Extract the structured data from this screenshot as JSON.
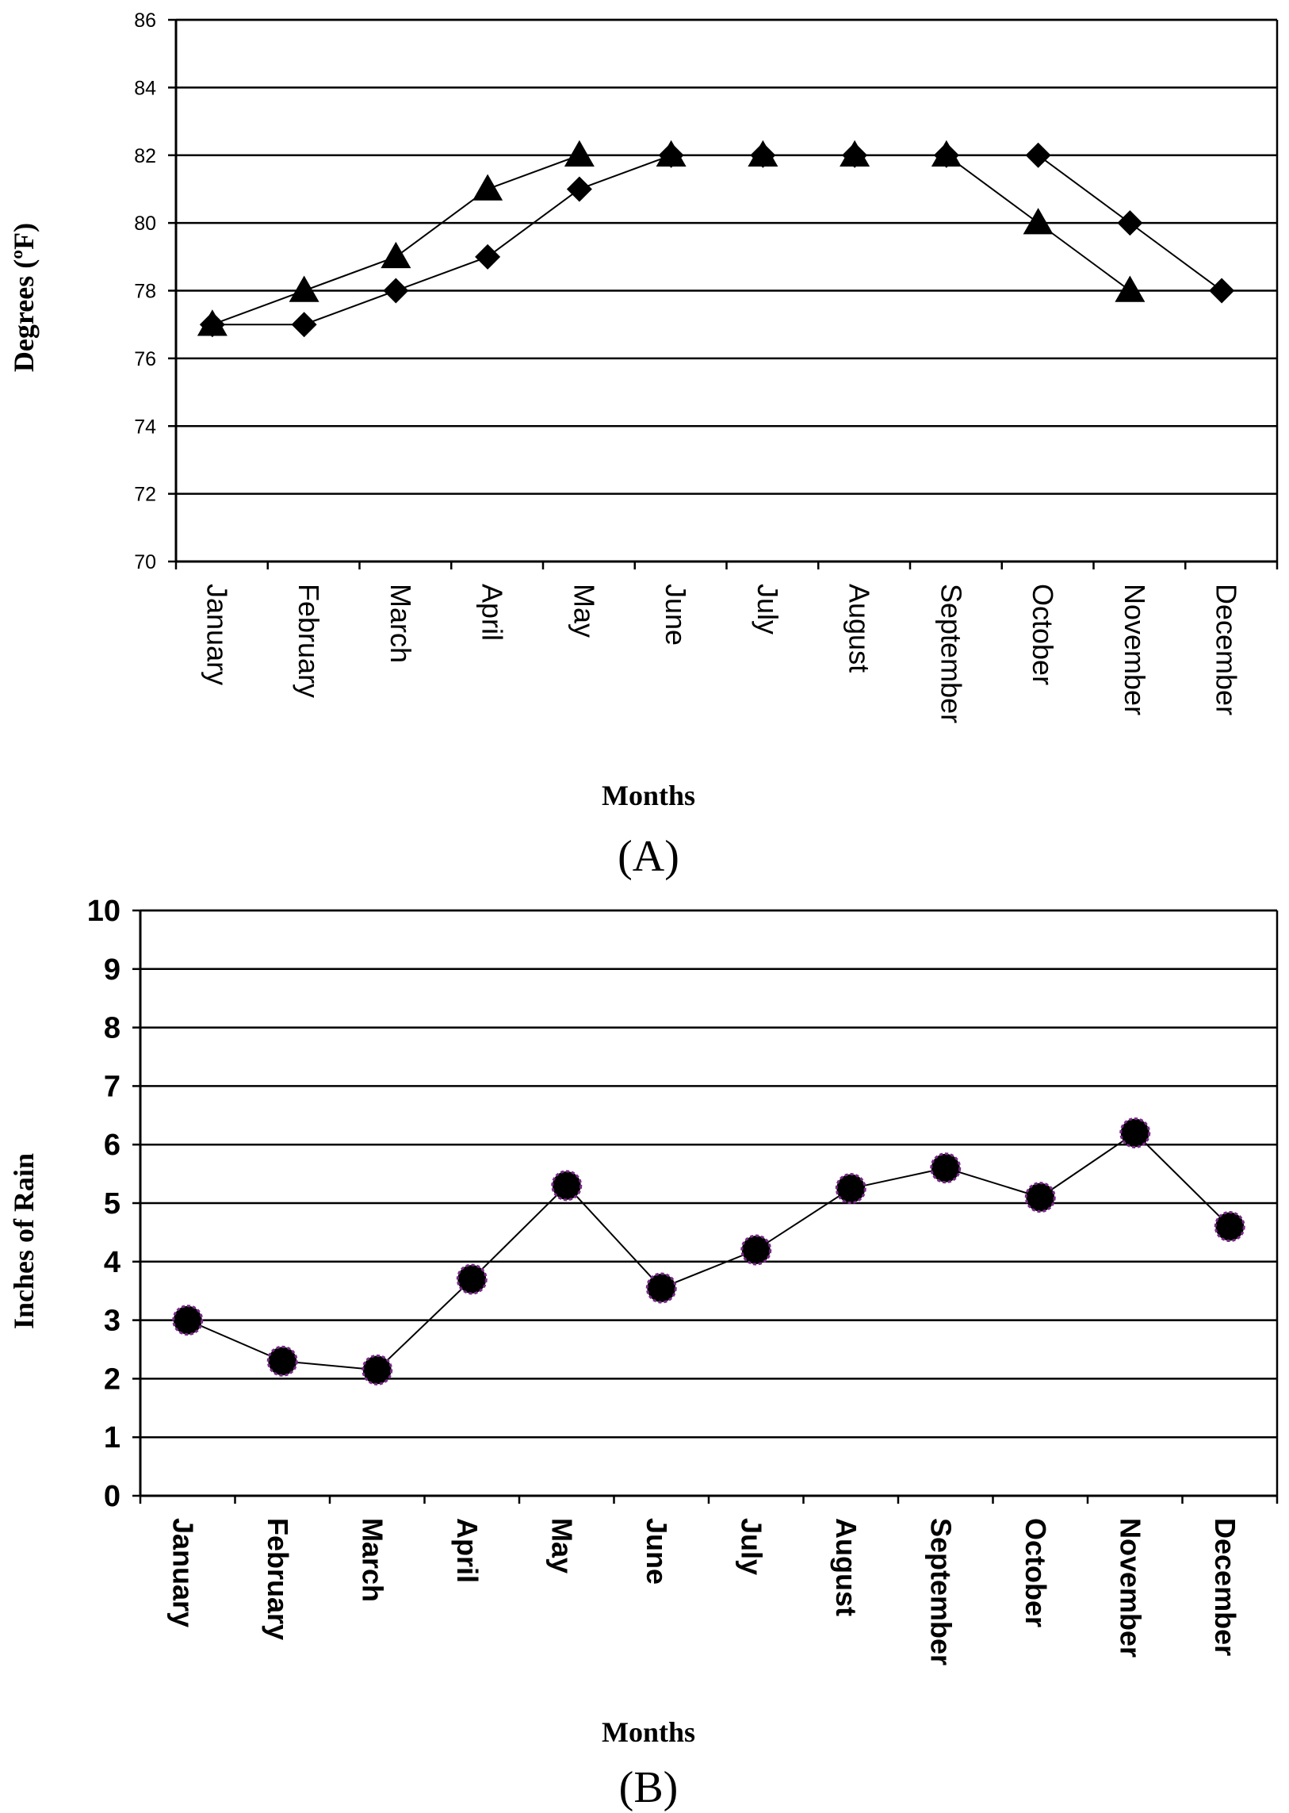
{
  "chart_data": [
    {
      "type": "line",
      "panel_label": "(A)",
      "title": "",
      "xlabel": "Months",
      "ylabel": "Degrees (ºF)",
      "ylim": [
        70,
        86
      ],
      "yticks": [
        70,
        72,
        74,
        76,
        78,
        80,
        82,
        84,
        86
      ],
      "grid": true,
      "categories": [
        "January",
        "February",
        "March",
        "April",
        "May",
        "June",
        "July",
        "August",
        "September",
        "October",
        "November",
        "December"
      ],
      "series": [
        {
          "name": "triangle series",
          "marker": "triangle",
          "values": [
            77,
            78,
            79,
            81,
            82,
            82,
            82,
            82,
            82,
            80,
            78,
            null
          ]
        },
        {
          "name": "diamond series",
          "marker": "diamond",
          "values": [
            77,
            77,
            78,
            79,
            81,
            82,
            82,
            82,
            82,
            82,
            80,
            78
          ]
        }
      ]
    },
    {
      "type": "line",
      "panel_label": "(B)",
      "title": "",
      "xlabel": "Months",
      "ylabel": "Inches of Rain",
      "ylim": [
        0,
        10
      ],
      "yticks": [
        0,
        1,
        2,
        3,
        4,
        5,
        6,
        7,
        8,
        9,
        10
      ],
      "grid": true,
      "categories": [
        "January",
        "February",
        "March",
        "April",
        "May",
        "June",
        "July",
        "August",
        "September",
        "October",
        "November",
        "December"
      ],
      "series": [
        {
          "name": "rainfall",
          "marker": "circle",
          "values": [
            3.0,
            2.3,
            2.15,
            3.7,
            5.3,
            3.55,
            4.2,
            5.25,
            5.6,
            5.1,
            6.2,
            4.6
          ]
        }
      ]
    }
  ],
  "colors": {
    "axis": "#000000",
    "line": "#000000",
    "marker": "#000000",
    "circle_outline": "#7a2a8a"
  }
}
